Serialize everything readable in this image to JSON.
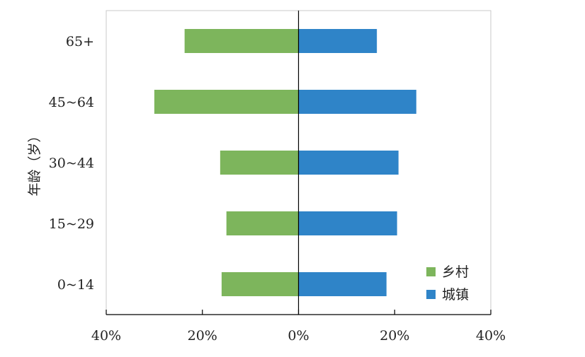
{
  "chart_data": {
    "type": "bar",
    "orientation": "horizontal",
    "layout": "diverging",
    "categories": [
      "0~14",
      "15~29",
      "30~44",
      "45~64",
      "65+"
    ],
    "series": [
      {
        "name": "乡村",
        "values": [
          16,
          15,
          16.3,
          30,
          23.7
        ],
        "direction": "left",
        "color": "#7db55c"
      },
      {
        "name": "城镇",
        "values": [
          18.3,
          20.5,
          20.8,
          24.5,
          16.3
        ],
        "direction": "right",
        "color": "#2f84c8"
      }
    ],
    "xlim": [
      -40,
      40
    ],
    "x_ticks": [
      -40,
      -20,
      0,
      20,
      40
    ],
    "x_tick_labels": [
      "40%",
      "20%",
      "0%",
      "20%",
      "40%"
    ],
    "ylabel": "年龄（岁）",
    "xlabel": "",
    "title": "",
    "legend": {
      "placement": "bottom-right"
    },
    "grid": false
  }
}
